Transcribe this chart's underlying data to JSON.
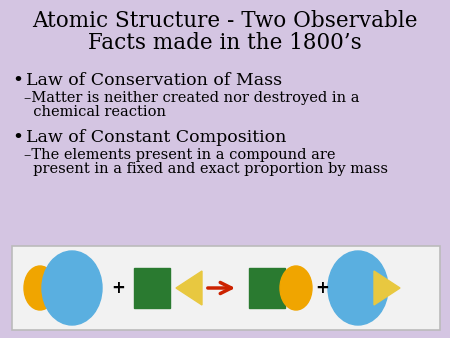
{
  "bg_color": "#d4c5e2",
  "diagram_bg": "#f2f2f2",
  "title_line1": "Atomic Structure - Two Observable",
  "title_line2": "Facts made in the 1800’s",
  "title_fontsize": 15.5,
  "title_color": "#000000",
  "bullet1": "Law of Conservation of Mass",
  "sub1_line1": "–Matter is neither created nor destroyed in a",
  "sub1_line2": "  chemical reaction",
  "bullet2": "Law of Constant Composition",
  "sub2_line1": "–The elements present in a compound are",
  "sub2_line2": "  present in a fixed and exact proportion by mass",
  "bullet_fontsize": 12.5,
  "sub_fontsize": 10.5,
  "diagram": {
    "small_circle_color": "#f0a500",
    "big_oval_color": "#5aafe0",
    "square_color": "#2a7a30",
    "triangle_color": "#e8c840",
    "arrow_color": "#cc2200",
    "plus_color": "#000000"
  }
}
